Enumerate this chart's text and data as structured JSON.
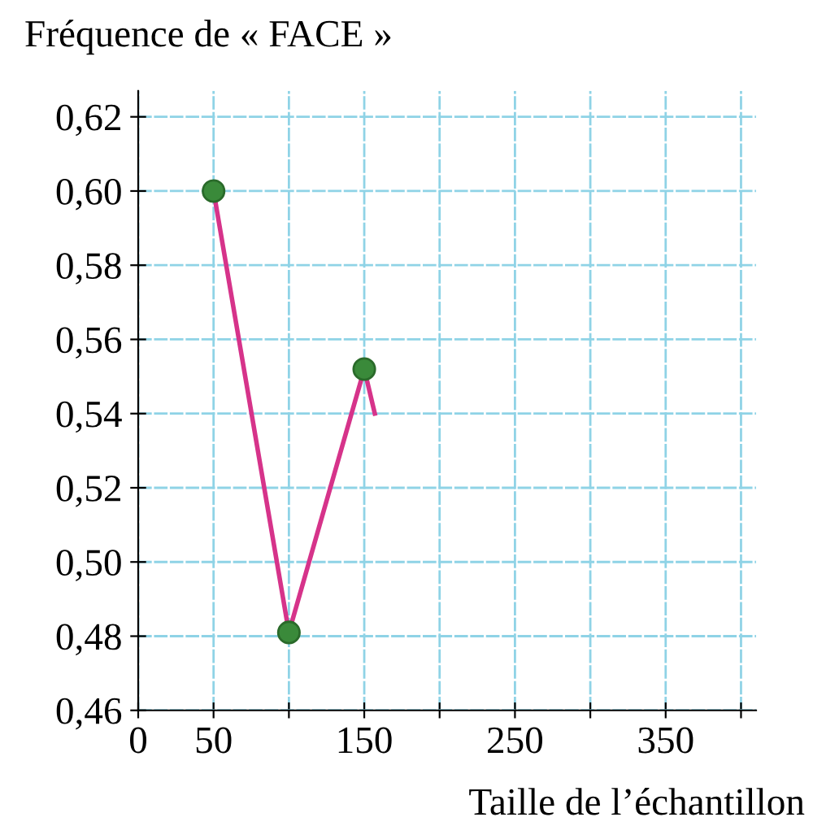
{
  "chart_data": {
    "type": "line",
    "xlabel": "Taille de l’échantillon",
    "ylabel": "Fréquence de « FACE »",
    "series": [
      {
        "color": "#d6338a",
        "x": [
          50,
          100,
          150,
          157
        ],
        "values": [
          0.6,
          0.481,
          0.552,
          0.54
        ],
        "marker": "none"
      },
      {
        "type": "scatter",
        "color": "#3a8a3a",
        "x": [
          50,
          100,
          150
        ],
        "values": [
          0.6,
          0.481,
          0.552
        ],
        "marker": "circle"
      }
    ],
    "xlim": [
      0,
      410
    ],
    "ylim": [
      0.46,
      0.627
    ],
    "xticks": [
      0,
      50,
      {
        "value": 100,
        "label": null
      },
      150,
      {
        "value": 200,
        "label": null
      },
      250,
      {
        "value": 300,
        "label": null
      },
      350,
      {
        "value": 400,
        "label": null
      }
    ],
    "yticks": [
      {
        "value": 0.46,
        "label": "0,46"
      },
      {
        "value": 0.48,
        "label": "0,48"
      },
      {
        "value": 0.5,
        "label": "0,50"
      },
      {
        "value": 0.52,
        "label": "0,52"
      },
      {
        "value": 0.54,
        "label": "0,54"
      },
      {
        "value": 0.56,
        "label": "0,56"
      },
      {
        "value": 0.58,
        "label": "0,58"
      },
      {
        "value": 0.6,
        "label": "0,60"
      },
      {
        "value": 0.62,
        "label": "0,62"
      }
    ],
    "grid": true
  }
}
